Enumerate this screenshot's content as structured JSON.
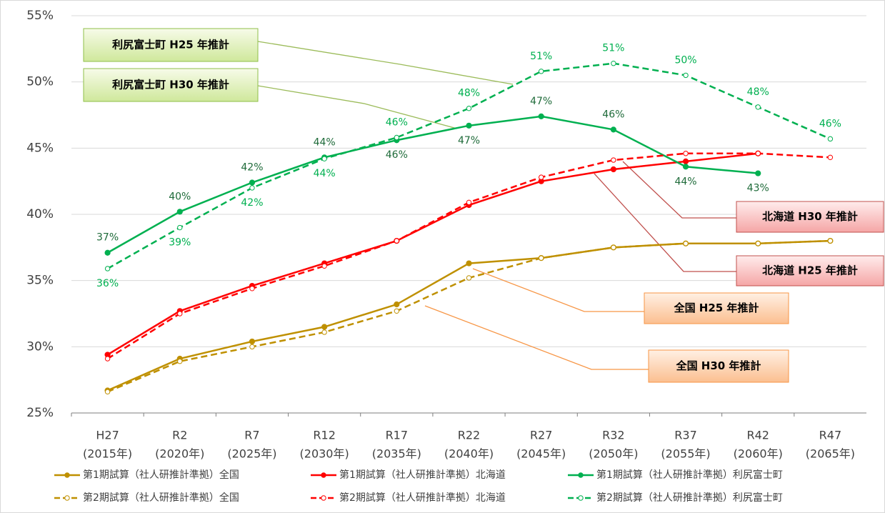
{
  "chart_data": {
    "type": "line",
    "categories": [
      [
        "H27",
        "(2015年)"
      ],
      [
        "R2",
        "(2020年)"
      ],
      [
        "R7",
        "(2025年)"
      ],
      [
        "R12",
        "(2030年)"
      ],
      [
        "R17",
        "(2035年)"
      ],
      [
        "R22",
        "(2040年)"
      ],
      [
        "R27",
        "(2045年)"
      ],
      [
        "R32",
        "(2050年)"
      ],
      [
        "R37",
        "(2055年)"
      ],
      [
        "R42",
        "(2060年)"
      ],
      [
        "R47",
        "(2065年)"
      ]
    ],
    "ylim": [
      25,
      55
    ],
    "yticks": [
      {
        "value": 25,
        "label": "25%"
      },
      {
        "value": 30,
        "label": "30%"
      },
      {
        "value": 35,
        "label": "35%"
      },
      {
        "value": 40,
        "label": "40%"
      },
      {
        "value": 45,
        "label": "45%"
      },
      {
        "value": 50,
        "label": "50%"
      },
      {
        "value": 55,
        "label": "55%"
      }
    ],
    "grid": true,
    "series": [
      {
        "name": "第1期試算（社人研推計準拠）全国",
        "color": "#bf9000",
        "dash": false,
        "values": [
          26.7,
          29.1,
          30.4,
          31.5,
          33.2,
          36.3,
          36.7,
          37.5,
          37.8,
          37.8,
          38.0
        ]
      },
      {
        "name": "第1期試算（社人研推計準拠）北海道",
        "color": "#ff0000",
        "dash": false,
        "values": [
          29.4,
          32.7,
          34.6,
          36.3,
          38.0,
          40.7,
          42.5,
          43.4,
          44.0,
          44.6,
          null
        ]
      },
      {
        "name": "第1期試算（社人研推計準拠）利尻富士町",
        "color": "#00b050",
        "dash": false,
        "values": [
          37.1,
          40.2,
          42.4,
          44.3,
          45.6,
          46.7,
          47.4,
          46.4,
          43.6,
          43.1,
          null
        ],
        "value_labels": [
          "37%",
          "40%",
          "42%",
          "44%",
          "46%",
          "47%",
          "47%",
          "46%",
          "44%",
          "43%",
          null
        ]
      },
      {
        "name": "第2期試算（社人研推計準拠）全国",
        "color": "#bf9000",
        "dash": true,
        "values": [
          26.6,
          28.9,
          30.0,
          31.1,
          32.7,
          35.2,
          36.7,
          37.5,
          37.8,
          37.8,
          38.0
        ]
      },
      {
        "name": "第2期試算（社人研推計準拠）北海道",
        "color": "#ff0000",
        "dash": true,
        "values": [
          29.1,
          32.5,
          34.4,
          36.1,
          38.0,
          40.9,
          42.8,
          44.1,
          44.6,
          44.6,
          44.3
        ]
      },
      {
        "name": "第2期試算（社人研推計準拠）利尻富士町",
        "color": "#00b050",
        "dash": true,
        "values": [
          35.9,
          39.0,
          42.0,
          44.2,
          45.8,
          48.0,
          50.8,
          51.4,
          50.5,
          48.1,
          45.7
        ],
        "value_labels": [
          "36%",
          "39%",
          "42%",
          "44%",
          "46%",
          "48%",
          "51%",
          "51%",
          "50%",
          "48%",
          "46%"
        ]
      }
    ],
    "annotations": [
      "利尻富士町 H25 年推計",
      "利尻富士町 H30 年推計",
      "北海道 H30 年推計",
      "北海道 H25 年推計",
      "全国 H25 年推計",
      "全国 H30 年推計"
    ]
  }
}
